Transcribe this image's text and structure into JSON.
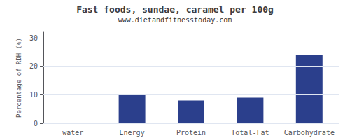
{
  "chart_data": {
    "type": "bar",
    "title": "Fast foods, sundae, caramel per 100g",
    "subtitle": "www.dietandfitnesstoday.com",
    "categories": [
      "water",
      "Energy",
      "Protein",
      "Total-Fat",
      "Carbohydrate"
    ],
    "values": [
      0,
      10,
      8,
      9,
      24
    ],
    "color": "#2b3f8c",
    "ylabel": "Percentage of RDH (%)",
    "ylim": [
      0,
      32
    ],
    "yticks": [
      0,
      10,
      20,
      30
    ],
    "grid": true
  }
}
